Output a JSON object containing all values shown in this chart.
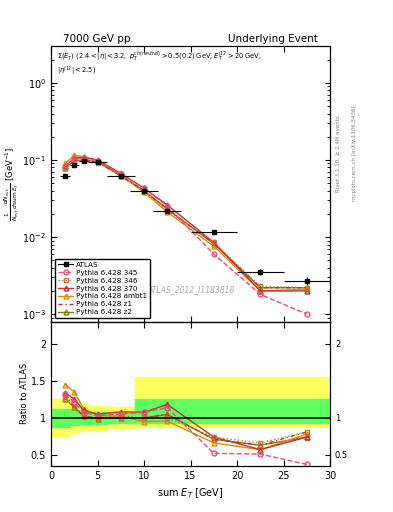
{
  "title_left": "7000 GeV pp",
  "title_right": "Underlying Event",
  "annotation": "ATLAS_2012_I1183818",
  "rivet_label": "Rivet 3.1.10, ≥ 2.4M events",
  "mcplots_label": "mcplots.cern.ch [arXiv:1306.3436]",
  "ylabel_main": "1/N_{evt}  dN_{evt}/dsum E_T  [GeV^{-1}]",
  "ylabel_ratio": "Ratio to ATLAS",
  "xlabel": "sum E_T [GeV]",
  "x_data": [
    1.5,
    2.5,
    3.5,
    5.0,
    7.5,
    10.0,
    12.5,
    17.5,
    22.5,
    27.5
  ],
  "xerr": [
    0.5,
    0.5,
    0.5,
    1.0,
    1.5,
    1.5,
    1.5,
    2.5,
    2.5,
    2.5
  ],
  "atlas_y": [
    0.062,
    0.085,
    0.098,
    0.095,
    0.062,
    0.04,
    0.022,
    0.0115,
    0.0035,
    0.0027
  ],
  "atlas_yerr": [
    0.003,
    0.003,
    0.003,
    0.003,
    0.002,
    0.001,
    0.001,
    0.0005,
    0.0003,
    0.0003
  ],
  "p345_y": [
    0.082,
    0.103,
    0.105,
    0.098,
    0.065,
    0.043,
    0.025,
    0.006,
    0.0018,
    0.001
  ],
  "p346_y": [
    0.078,
    0.098,
    0.1,
    0.095,
    0.063,
    0.04,
    0.022,
    0.0085,
    0.0023,
    0.0022
  ],
  "p370_y": [
    0.083,
    0.106,
    0.108,
    0.1,
    0.067,
    0.043,
    0.026,
    0.0085,
    0.002,
    0.002
  ],
  "pambt1_y": [
    0.09,
    0.115,
    0.11,
    0.098,
    0.063,
    0.038,
    0.021,
    0.0076,
    0.002,
    0.0021
  ],
  "pz1_y": [
    0.082,
    0.098,
    0.1,
    0.094,
    0.062,
    0.04,
    0.023,
    0.0082,
    0.0022,
    0.0022
  ],
  "pz2_y": [
    0.078,
    0.097,
    0.1,
    0.094,
    0.062,
    0.04,
    0.023,
    0.0082,
    0.0022,
    0.0022
  ],
  "ratio_345": [
    1.32,
    1.21,
    1.07,
    1.03,
    1.05,
    1.075,
    1.136,
    0.52,
    0.51,
    0.37
  ],
  "ratio_346": [
    1.26,
    1.15,
    1.02,
    1.0,
    1.02,
    1.0,
    1.0,
    0.74,
    0.66,
    0.81
  ],
  "ratio_370": [
    1.34,
    1.25,
    1.1,
    1.05,
    1.08,
    1.075,
    1.18,
    0.74,
    0.57,
    0.74
  ],
  "ratio_ambt1": [
    1.45,
    1.35,
    1.12,
    1.03,
    1.02,
    0.95,
    0.955,
    0.66,
    0.57,
    0.78
  ],
  "ratio_z1": [
    1.32,
    1.15,
    1.02,
    0.99,
    1.0,
    1.0,
    1.045,
    0.71,
    0.63,
    0.81
  ],
  "ratio_z2": [
    1.26,
    1.14,
    1.02,
    0.99,
    1.0,
    1.0,
    1.045,
    0.71,
    0.63,
    0.74
  ],
  "band_x_edges": [
    0,
    1,
    2,
    3,
    4,
    6,
    9,
    11,
    15,
    20,
    25,
    30
  ],
  "band_yellow_lo": [
    0.75,
    0.75,
    0.8,
    0.82,
    0.84,
    0.86,
    0.88,
    0.88,
    0.88,
    0.88,
    0.88
  ],
  "band_yellow_hi": [
    1.25,
    1.25,
    1.2,
    1.18,
    1.16,
    1.14,
    1.55,
    1.55,
    1.55,
    1.55,
    1.55
  ],
  "band_green_lo": [
    0.88,
    0.88,
    0.9,
    0.91,
    0.92,
    0.93,
    0.93,
    0.93,
    0.93,
    0.93,
    0.93
  ],
  "band_green_hi": [
    1.12,
    1.12,
    1.1,
    1.09,
    1.08,
    1.07,
    1.25,
    1.25,
    1.25,
    1.25,
    1.25
  ],
  "color_345": "#e05080",
  "color_346": "#c87828",
  "color_370": "#c03030",
  "color_ambt1": "#e08800",
  "color_z1": "#c03030",
  "color_z2": "#808000",
  "ylim_main": [
    0.0008,
    3.0
  ],
  "ylim_ratio": [
    0.35,
    2.3
  ],
  "xlim": [
    0,
    30
  ]
}
